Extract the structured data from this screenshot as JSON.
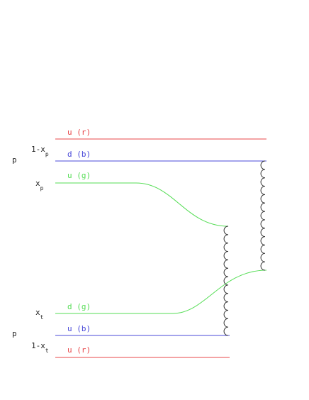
{
  "colors": {
    "red": "#e8474a",
    "blue": "#4a4ad8",
    "green": "#55dd55",
    "label": "#222222",
    "gluon": "#333333"
  },
  "left_labels": {
    "proton_top": "p",
    "proton_bottom": "p",
    "one_minus_x": "1-x",
    "x": "x",
    "sub_p": "p",
    "sub_t": "t"
  },
  "quark_labels": {
    "u_r_top": "u (r)",
    "d_b_top": "d (b)",
    "u_g_top": "u (g)",
    "d_g_bottom": "d (g)",
    "u_b_bottom": "u (b)",
    "u_r_bottom": "u (r)"
  }
}
